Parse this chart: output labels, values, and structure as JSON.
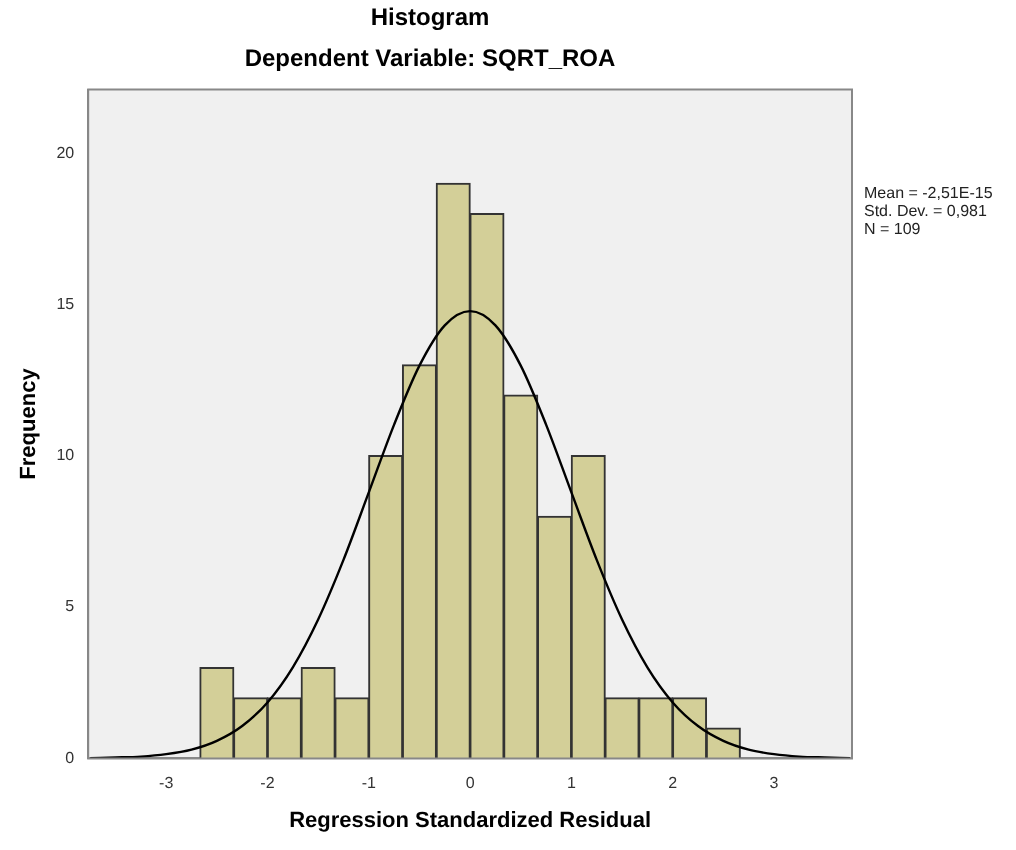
{
  "chart_data": {
    "type": "histogram",
    "title": "Histogram",
    "subtitle": "Dependent Variable: SQRT_ROA",
    "xlabel": "Regression Standardized Residual",
    "ylabel": "Frequency",
    "bins": [
      -2.667,
      -2.333,
      -2,
      -1.667,
      -1.333,
      -1,
      -0.667,
      -0.333,
      0,
      0.333,
      0.667,
      1,
      1.333,
      1.667,
      2,
      2.333,
      2.667
    ],
    "values": [
      3,
      2,
      2,
      3,
      2,
      10,
      13,
      19,
      18,
      12,
      8,
      10,
      2,
      2,
      2,
      1
    ],
    "color": "#d3cf98",
    "series": [
      {
        "type": "line",
        "color": "#000000",
        "x": [
          -3.75,
          -3.5,
          -3.25,
          -3,
          -2.75,
          -2.5,
          -2.25,
          -2,
          -1.75,
          -1.5,
          -1.25,
          -1,
          -0.75,
          -0.5,
          -0.25,
          0,
          0.25,
          0.5,
          0.75,
          1,
          1.25,
          1.5,
          1.75,
          2,
          2.25,
          2.5,
          2.75,
          3,
          3.25,
          3.5,
          3.75
        ],
        "values": [
          0.01,
          0.03,
          0.06,
          0.14,
          0.29,
          0.58,
          1.07,
          1.85,
          3.01,
          4.59,
          6.56,
          8.79,
          11.03,
          12.98,
          14.31,
          14.78,
          14.31,
          12.98,
          11.03,
          8.79,
          6.56,
          4.59,
          3.01,
          1.85,
          1.07,
          0.58,
          0.29,
          0.14,
          0.06,
          0.03,
          0.01
        ]
      }
    ],
    "xlim": [
      -3.77,
      3.77
    ],
    "xticks": [
      -3,
      -2,
      -1,
      0,
      1,
      2,
      3
    ],
    "ylim": [
      0,
      22.1
    ],
    "yticks": [
      0,
      5,
      10,
      15,
      20
    ],
    "grid": false,
    "legend": false,
    "annotations": [
      "Mean = -2,51E-15",
      "Std. Dev. = 0,981",
      "N = 109"
    ]
  }
}
